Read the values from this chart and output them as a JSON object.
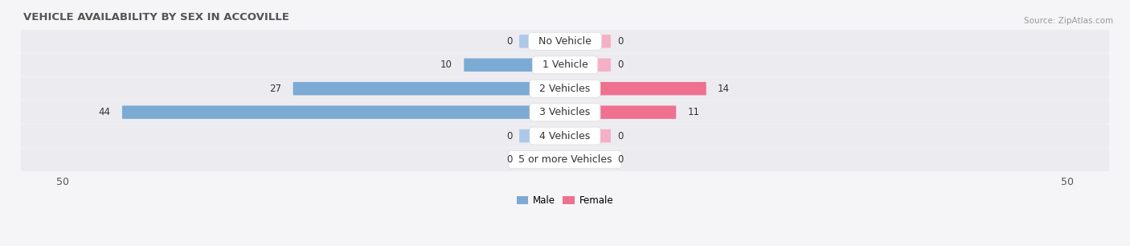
{
  "title": "VEHICLE AVAILABILITY BY SEX IN ACCOVILLE",
  "source": "Source: ZipAtlas.com",
  "categories": [
    "No Vehicle",
    "1 Vehicle",
    "2 Vehicles",
    "3 Vehicles",
    "4 Vehicles",
    "5 or more Vehicles"
  ],
  "male_values": [
    0,
    10,
    27,
    44,
    0,
    0
  ],
  "female_values": [
    0,
    0,
    14,
    11,
    0,
    0
  ],
  "male_color": "#7baad4",
  "female_color": "#f07090",
  "male_light_color": "#adc8e8",
  "female_light_color": "#f5b0c5",
  "row_bg_color": "#ececf0",
  "fig_bg_color": "#f5f5f7",
  "xlim": 50,
  "legend_male": "Male",
  "legend_female": "Female",
  "title_fontsize": 9.5,
  "label_fontsize": 8.5,
  "axis_fontsize": 9,
  "category_fontsize": 9,
  "stub_size": 4.5
}
